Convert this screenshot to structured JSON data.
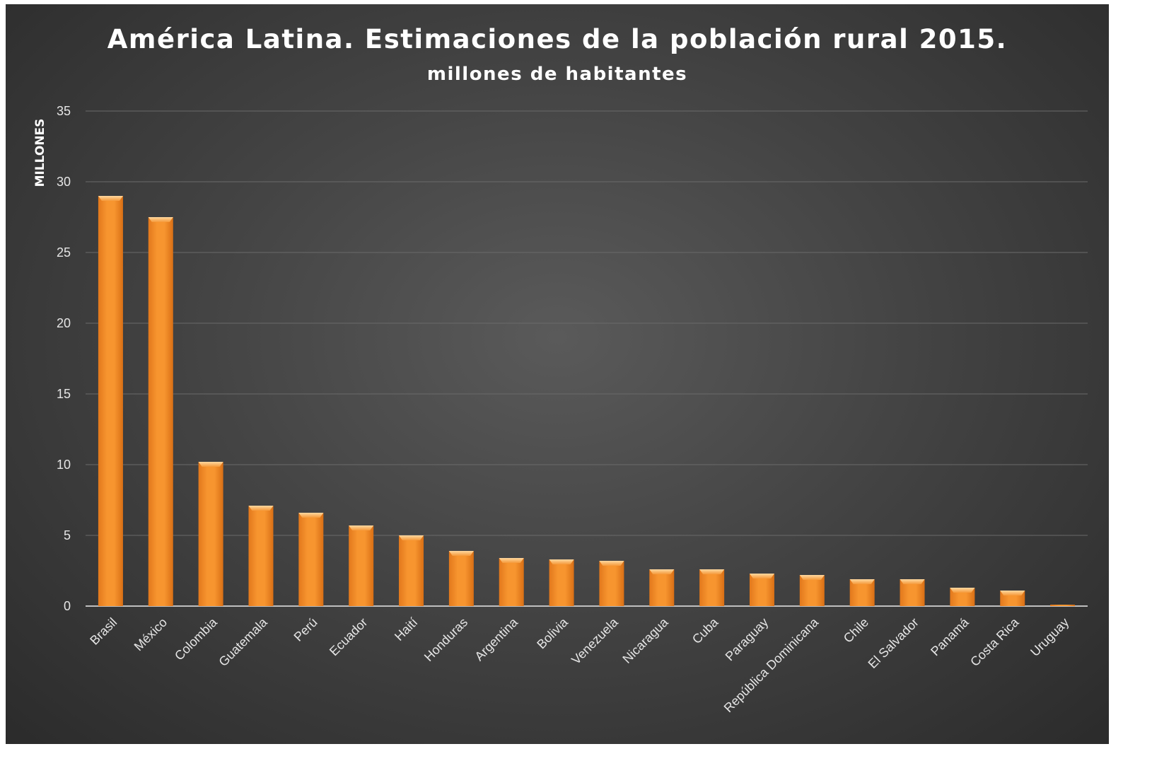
{
  "chart_data": {
    "type": "bar",
    "title": "América Latina. Estimaciones de la población rural 2015.",
    "subtitle": "millones de habitantes",
    "ylabel": "MILLONES",
    "xlabel": "",
    "ylim": [
      0,
      35
    ],
    "yticks": [
      0,
      5,
      10,
      15,
      20,
      25,
      30,
      35
    ],
    "grid": true,
    "categories": [
      "Brasil",
      "México",
      "Colombia",
      "Guatemala",
      "Perú",
      "Ecuador",
      "Haití",
      "Honduras",
      "Argentina",
      "Bolivia",
      "Venezuela",
      "Nicaragua",
      "Cuba",
      "Paraguay",
      "República Dominicana",
      "Chile",
      "El Salvador",
      "Panamá",
      "Costa Rica",
      "Uruguay"
    ],
    "values": [
      29.0,
      27.5,
      10.2,
      7.1,
      6.6,
      5.7,
      5.0,
      3.9,
      3.4,
      3.3,
      3.2,
      2.6,
      2.6,
      2.3,
      2.2,
      1.9,
      1.9,
      1.3,
      1.1,
      0.1
    ],
    "colors": {
      "bar": "#f28e2b",
      "bar_light": "#ffc070",
      "grid": "#6a6a6a",
      "axis": "#bfbfbf"
    }
  }
}
